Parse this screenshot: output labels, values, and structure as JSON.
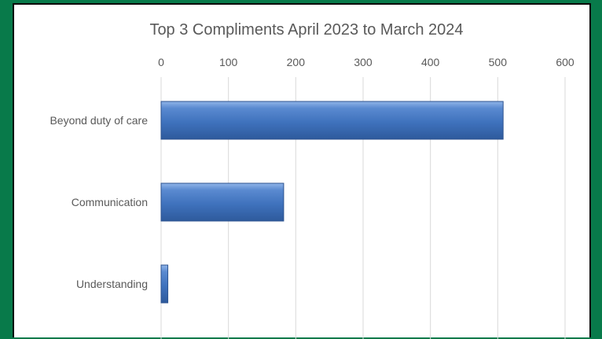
{
  "chart_data": {
    "type": "bar",
    "orientation": "horizontal",
    "title": "Top 3 Compliments April 2023 to March 2024",
    "categories": [
      "Beyond duty of care",
      "Communication",
      "Understanding"
    ],
    "values": [
      508,
      182,
      10
    ],
    "xlim": [
      0,
      600
    ],
    "x_ticks": [
      0,
      100,
      200,
      300,
      400,
      500,
      600
    ],
    "x_tick_labels": [
      "0",
      "100",
      "200",
      "300",
      "400",
      "500",
      "600"
    ],
    "x_axis_position": "top",
    "grid": true,
    "legend": "none",
    "xlabel": "",
    "ylabel": ""
  },
  "colors": {
    "background": "#087a4a",
    "plot_background": "#ffffff",
    "bar_fill": "#4a7cc4",
    "bar_edge": "#2b528f",
    "gridline": "#d9d9d9",
    "text": "#595959"
  }
}
